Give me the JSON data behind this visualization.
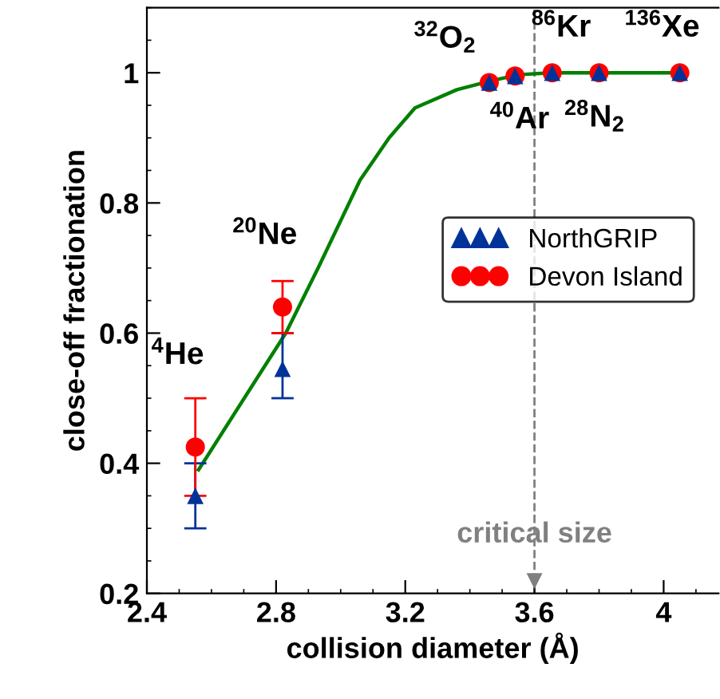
{
  "chart_data": {
    "type": "scatter",
    "xlabel": "collision diameter (Å)",
    "ylabel": "close-off fractionation",
    "x": [
      2.55,
      2.82,
      3.46,
      3.54,
      3.655,
      3.8,
      4.05
    ],
    "series": [
      {
        "name": "NorthGRIP",
        "color": "#003399",
        "marker": "triangle",
        "values": [
          0.35,
          0.545,
          0.985,
          0.995,
          1.0,
          1.0,
          1.0
        ],
        "errors": [
          [
            0.3,
            0.4
          ],
          [
            0.5,
            0.6
          ],
          null,
          null,
          null,
          null,
          null
        ]
      },
      {
        "name": "Devon Island",
        "color": "#ff0000",
        "marker": "circle",
        "values": [
          0.425,
          0.64,
          0.985,
          0.995,
          1.0,
          1.0,
          1.0
        ],
        "errors": [
          [
            0.35,
            0.5
          ],
          [
            0.6,
            0.68
          ],
          null,
          null,
          null,
          null,
          null
        ]
      },
      {
        "type": "line",
        "color": "#008000",
        "marker": "none",
        "x": [
          2.56,
          2.83,
          2.93,
          3.06,
          3.15,
          3.23,
          3.36,
          3.46,
          3.55,
          3.65,
          4.05
        ],
        "values": [
          0.39,
          0.6,
          0.7,
          0.835,
          0.9,
          0.946,
          0.974,
          0.987,
          0.997,
          1.0,
          1.0
        ]
      }
    ],
    "xlim": [
      2.4,
      4.17
    ],
    "xticks": [
      2.4,
      2.8,
      3.2,
      3.6,
      4
    ],
    "ylim": [
      0.2,
      1.1
    ],
    "yticks": [
      0.2,
      0.4,
      0.6,
      0.8,
      1
    ],
    "grid": false,
    "legend": "center right",
    "ref_lines": [
      {
        "axis": "x",
        "value": 3.6,
        "label": "critical size",
        "color": "#808080",
        "line_style": "dashed"
      }
    ],
    "annotations": [
      "$^{4}$He",
      "$^{20}$Ne",
      "$^{32}$O$_{2}$",
      "$^{40}$Ar",
      "$^{86}$Kr",
      "$^{28}$N$_{2}$",
      "$^{136}$Xe"
    ]
  }
}
